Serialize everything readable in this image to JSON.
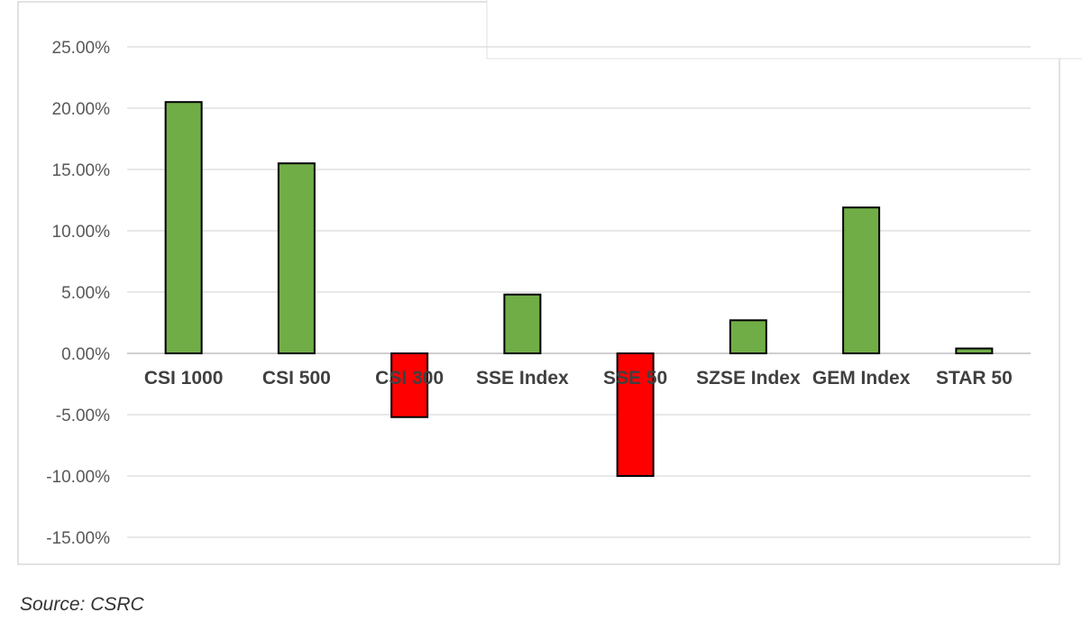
{
  "chart_data": {
    "type": "bar",
    "categories": [
      "CSI 1000",
      "CSI 500",
      "CSI 300",
      "SSE Index",
      "SSE 50",
      "SZSE Index",
      "GEM Index",
      "STAR 50"
    ],
    "values": [
      20.5,
      15.5,
      -5.2,
      4.8,
      -10.0,
      2.7,
      11.9,
      0.4
    ],
    "ylim": [
      -15,
      25
    ],
    "yticks": [
      25,
      20,
      15,
      10,
      5,
      0,
      -5,
      -10,
      -15
    ],
    "ytick_labels": [
      "25.00%",
      "20.00%",
      "15.00%",
      "10.00%",
      "5.00%",
      "0.00%",
      "-5.00%",
      "-10.00%",
      "-15.00%"
    ],
    "title": "",
    "xlabel": "",
    "ylabel": "",
    "grid": true,
    "positive_color": "#70ad47",
    "negative_color": "#ff0000"
  },
  "source": "Source: CSRC"
}
